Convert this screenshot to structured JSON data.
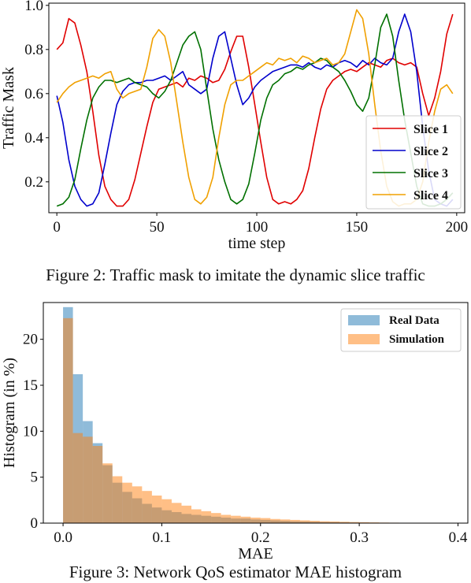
{
  "captions": {
    "fig2": "Figure 2: Traffic mask to imitate the dynamic slice traffic",
    "fig3": "Figure 3: Network QoS estimator MAE histogram"
  },
  "chart_data": [
    {
      "type": "line",
      "xlabel": "time step",
      "ylabel": "Traffic Mask",
      "xlim": [
        -4,
        204
      ],
      "ylim": [
        0.06,
        1.01
      ],
      "xticks": [
        0,
        50,
        100,
        150,
        200
      ],
      "yticks": [
        0.2,
        0.4,
        0.6,
        0.8,
        1.0
      ],
      "ytick_labels": [
        "0.2",
        "0.4",
        "0.6",
        "0.8",
        "1.0"
      ],
      "grid": false,
      "legend_position": "lower-right",
      "series": [
        {
          "name": "Slice 1",
          "color": "#e00000",
          "x": [
            0,
            3,
            6,
            9,
            12,
            15,
            18,
            21,
            24,
            27,
            30,
            33,
            36,
            39,
            42,
            45,
            48,
            51,
            54,
            57,
            60,
            63,
            66,
            69,
            72,
            75,
            78,
            81,
            84,
            87,
            90,
            93,
            96,
            99,
            102,
            105,
            108,
            111,
            114,
            117,
            120,
            123,
            126,
            129,
            132,
            135,
            138,
            141,
            144,
            147,
            150,
            153,
            156,
            159,
            162,
            165,
            168,
            171,
            174,
            177,
            180,
            183,
            186,
            189,
            192,
            195,
            198
          ],
          "values": [
            0.8,
            0.83,
            0.94,
            0.92,
            0.82,
            0.7,
            0.52,
            0.32,
            0.18,
            0.12,
            0.09,
            0.09,
            0.12,
            0.21,
            0.33,
            0.45,
            0.56,
            0.62,
            0.63,
            0.64,
            0.65,
            0.63,
            0.67,
            0.66,
            0.68,
            0.67,
            0.65,
            0.66,
            0.71,
            0.79,
            0.86,
            0.86,
            0.72,
            0.55,
            0.38,
            0.22,
            0.12,
            0.1,
            0.11,
            0.1,
            0.12,
            0.16,
            0.26,
            0.4,
            0.53,
            0.62,
            0.66,
            0.68,
            0.7,
            0.71,
            0.7,
            0.72,
            0.74,
            0.73,
            0.72,
            0.75,
            0.76,
            0.74,
            0.73,
            0.74,
            0.72,
            0.6,
            0.5,
            0.58,
            0.7,
            0.87,
            0.96
          ]
        },
        {
          "name": "Slice 2",
          "color": "#0000cc",
          "x": [
            0,
            3,
            6,
            9,
            12,
            15,
            18,
            21,
            24,
            27,
            30,
            33,
            36,
            39,
            42,
            45,
            48,
            51,
            54,
            57,
            60,
            63,
            66,
            69,
            72,
            75,
            78,
            81,
            84,
            87,
            90,
            93,
            96,
            99,
            102,
            105,
            108,
            111,
            114,
            117,
            120,
            123,
            126,
            129,
            132,
            135,
            138,
            141,
            144,
            147,
            150,
            153,
            156,
            159,
            162,
            165,
            168,
            171,
            174,
            177,
            180,
            183,
            186,
            189,
            192,
            195,
            198
          ],
          "values": [
            0.59,
            0.47,
            0.3,
            0.18,
            0.12,
            0.09,
            0.1,
            0.15,
            0.28,
            0.42,
            0.55,
            0.61,
            0.64,
            0.65,
            0.65,
            0.66,
            0.66,
            0.67,
            0.68,
            0.66,
            0.68,
            0.7,
            0.64,
            0.62,
            0.6,
            0.62,
            0.76,
            0.86,
            0.88,
            0.76,
            0.64,
            0.55,
            0.58,
            0.63,
            0.66,
            0.68,
            0.7,
            0.71,
            0.72,
            0.73,
            0.73,
            0.72,
            0.74,
            0.72,
            0.71,
            0.73,
            0.72,
            0.74,
            0.75,
            0.74,
            0.72,
            0.75,
            0.73,
            0.76,
            0.74,
            0.73,
            0.76,
            0.88,
            0.96,
            0.88,
            0.7,
            0.45,
            0.25,
            0.12,
            0.1,
            0.09,
            0.12
          ]
        },
        {
          "name": "Slice 3",
          "color": "#007000",
          "x": [
            0,
            3,
            6,
            9,
            12,
            15,
            18,
            21,
            24,
            27,
            30,
            33,
            36,
            39,
            42,
            45,
            48,
            51,
            54,
            57,
            60,
            63,
            66,
            69,
            72,
            75,
            78,
            81,
            84,
            87,
            90,
            93,
            96,
            99,
            102,
            105,
            108,
            111,
            114,
            117,
            120,
            123,
            126,
            129,
            132,
            135,
            138,
            141,
            144,
            147,
            150,
            153,
            156,
            159,
            162,
            165,
            168,
            171,
            174,
            177,
            180,
            183,
            186,
            189,
            192,
            195,
            198
          ],
          "values": [
            0.09,
            0.1,
            0.13,
            0.21,
            0.35,
            0.48,
            0.58,
            0.63,
            0.66,
            0.66,
            0.65,
            0.66,
            0.67,
            0.65,
            0.64,
            0.63,
            0.6,
            0.58,
            0.61,
            0.66,
            0.74,
            0.82,
            0.86,
            0.88,
            0.8,
            0.62,
            0.44,
            0.3,
            0.2,
            0.12,
            0.1,
            0.12,
            0.19,
            0.33,
            0.48,
            0.58,
            0.64,
            0.66,
            0.69,
            0.7,
            0.72,
            0.71,
            0.73,
            0.74,
            0.76,
            0.75,
            0.72,
            0.7,
            0.66,
            0.61,
            0.55,
            0.52,
            0.58,
            0.73,
            0.9,
            0.96,
            0.86,
            0.66,
            0.48,
            0.33,
            0.18,
            0.1,
            0.09,
            0.09,
            0.1,
            0.12,
            0.15
          ]
        },
        {
          "name": "Slice 4",
          "color": "#f0a000",
          "x": [
            0,
            3,
            6,
            9,
            12,
            15,
            18,
            21,
            24,
            27,
            30,
            33,
            36,
            39,
            42,
            45,
            48,
            51,
            54,
            57,
            60,
            63,
            66,
            69,
            72,
            75,
            78,
            81,
            84,
            87,
            90,
            93,
            96,
            99,
            102,
            105,
            108,
            111,
            114,
            117,
            120,
            123,
            126,
            129,
            132,
            135,
            138,
            141,
            144,
            147,
            150,
            153,
            156,
            159,
            162,
            165,
            168,
            171,
            174,
            177,
            180,
            183,
            186,
            189,
            192,
            195,
            198
          ],
          "values": [
            0.56,
            0.6,
            0.63,
            0.65,
            0.66,
            0.67,
            0.68,
            0.67,
            0.69,
            0.7,
            0.62,
            0.58,
            0.6,
            0.61,
            0.62,
            0.72,
            0.85,
            0.89,
            0.86,
            0.74,
            0.56,
            0.38,
            0.22,
            0.12,
            0.1,
            0.13,
            0.22,
            0.4,
            0.55,
            0.64,
            0.66,
            0.66,
            0.68,
            0.7,
            0.72,
            0.74,
            0.73,
            0.76,
            0.75,
            0.76,
            0.74,
            0.77,
            0.76,
            0.74,
            0.75,
            0.76,
            0.73,
            0.74,
            0.78,
            0.88,
            0.98,
            0.94,
            0.78,
            0.55,
            0.34,
            0.18,
            0.11,
            0.09,
            0.1,
            0.1,
            0.12,
            0.2,
            0.38,
            0.52,
            0.62,
            0.64,
            0.6
          ]
        }
      ]
    },
    {
      "type": "bar",
      "xlabel": "MAE",
      "ylabel": "Histogram (in %)",
      "xlim": [
        -0.02,
        0.41
      ],
      "ylim": [
        0,
        24
      ],
      "xticks": [
        0.0,
        0.1,
        0.2,
        0.3,
        0.4
      ],
      "yticks": [
        0,
        5,
        10,
        15,
        20
      ],
      "bin_width": 0.01,
      "grid": false,
      "legend_position": "top-right",
      "bin_starts": [
        0.0,
        0.01,
        0.02,
        0.03,
        0.04,
        0.05,
        0.06,
        0.07,
        0.08,
        0.09,
        0.1,
        0.11,
        0.12,
        0.13,
        0.14,
        0.15,
        0.16,
        0.17,
        0.18,
        0.19,
        0.2,
        0.21,
        0.22,
        0.23,
        0.24,
        0.25,
        0.26,
        0.27,
        0.28,
        0.29,
        0.3,
        0.31,
        0.32,
        0.33,
        0.34,
        0.35,
        0.36,
        0.37,
        0.38,
        0.39
      ],
      "series": [
        {
          "name": "Real Data",
          "color": "#1f77b4",
          "opacity": 0.5,
          "values": [
            23.5,
            16.2,
            11.1,
            8.7,
            6.3,
            4.4,
            3.4,
            2.7,
            2.1,
            1.7,
            1.4,
            1.2,
            1.0,
            0.9,
            0.8,
            0.7,
            0.6,
            0.5,
            0.5,
            0.4,
            0.35,
            0.3,
            0.25,
            0.2,
            0.18,
            0.15,
            0.12,
            0.1,
            0.08,
            0.06,
            0.05,
            0.04,
            0.03,
            0.03,
            0.02,
            0.02,
            0.01,
            0.01,
            0.01,
            0.01
          ]
        },
        {
          "name": "Simulation",
          "color": "#ff7f0e",
          "opacity": 0.5,
          "values": [
            22.3,
            9.8,
            9.4,
            8.4,
            6.5,
            5.1,
            4.4,
            4.0,
            3.5,
            3.0,
            2.6,
            2.2,
            1.9,
            1.5,
            1.3,
            1.1,
            0.9,
            0.8,
            0.7,
            0.6,
            0.55,
            0.45,
            0.4,
            0.35,
            0.3,
            0.25,
            0.2,
            0.18,
            0.15,
            0.12,
            0.1,
            0.08,
            0.06,
            0.05,
            0.04,
            0.03,
            0.03,
            0.02,
            0.02,
            0.01
          ]
        }
      ]
    }
  ]
}
